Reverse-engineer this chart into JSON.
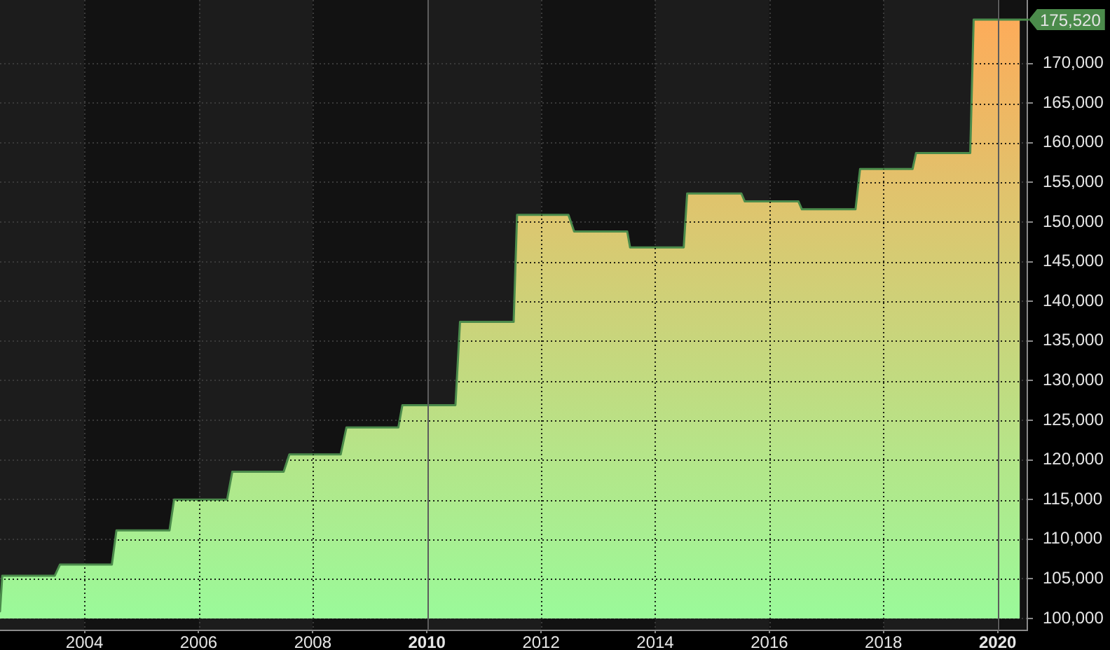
{
  "chart_data": {
    "type": "area",
    "x": [
      2002.52,
      2002.56,
      2003.48,
      2003.57,
      2004.48,
      2004.56,
      2005.49,
      2005.57,
      2006.5,
      2006.59,
      2007.49,
      2007.59,
      2008.49,
      2008.59,
      2009.5,
      2009.57,
      2010.5,
      2010.58,
      2011.52,
      2011.58,
      2012.48,
      2012.58,
      2013.51,
      2013.56,
      2014.5,
      2014.56,
      2015.51,
      2015.57,
      2016.51,
      2016.57,
      2017.51,
      2017.59,
      2018.51,
      2018.57,
      2019.52,
      2019.58,
      2020.39
    ],
    "values": [
      100900,
      105400,
      105400,
      106800,
      106800,
      111100,
      111100,
      115000,
      115000,
      118500,
      118500,
      120700,
      120700,
      124100,
      124100,
      126900,
      126900,
      137400,
      137400,
      150900,
      150900,
      148800,
      148800,
      146800,
      146800,
      153600,
      153600,
      152600,
      152600,
      151600,
      151600,
      156700,
      156700,
      158700,
      158700,
      175520,
      175520
    ],
    "color": "#4b8b4b",
    "colors": [
      "#9bf999",
      "#a1f495",
      "#a1f495",
      "#a3f394",
      "#a3f394",
      "#a9ee91",
      "#a9ee91",
      "#aeea8d",
      "#aeea8d",
      "#b2e78a",
      "#b2e78a",
      "#b5e589",
      "#b5e589",
      "#bae186",
      "#bae186",
      "#bdde83",
      "#bdde83",
      "#cbd37a",
      "#cbd37a",
      "#ddc66f",
      "#ddc66f",
      "#dac871",
      "#dac871",
      "#d7ca72",
      "#d7ca72",
      "#e0c36d",
      "#e0c36d",
      "#dfc46d",
      "#dfc46d",
      "#dec56e",
      "#dec56e",
      "#e4bf6a",
      "#e4bf6a",
      "#e7bd68",
      "#e7bd68",
      "#fdac5a",
      "#fdac5a"
    ],
    "xlim": [
      2002.52,
      2020.52
    ],
    "xticks": [
      2004,
      2006,
      2008,
      2010,
      2012,
      2014,
      2016,
      2018,
      2020
    ],
    "ylim": [
      98500,
      178000
    ],
    "yticks": [
      {
        "value": 100000,
        "label": "100,000"
      },
      {
        "value": 105000,
        "label": "105,000"
      },
      {
        "value": 110000,
        "label": "110,000"
      },
      {
        "value": 115000,
        "label": "115,000"
      },
      {
        "value": 120000,
        "label": "120,000"
      },
      {
        "value": 125000,
        "label": "125,000"
      },
      {
        "value": 130000,
        "label": "130,000"
      },
      {
        "value": 135000,
        "label": "135,000"
      },
      {
        "value": 140000,
        "label": "140,000"
      },
      {
        "value": 145000,
        "label": "145,000"
      },
      {
        "value": 150000,
        "label": "150,000"
      },
      {
        "value": 155000,
        "label": "155,000"
      },
      {
        "value": 160000,
        "label": "160,000"
      },
      {
        "value": 165000,
        "label": "165,000"
      },
      {
        "value": 170000,
        "label": "170,000"
      }
    ],
    "grid": true,
    "marker": "none",
    "annotations": [
      {
        "text": "175,520",
        "x": 2020.39,
        "y": 175520
      }
    ]
  }
}
